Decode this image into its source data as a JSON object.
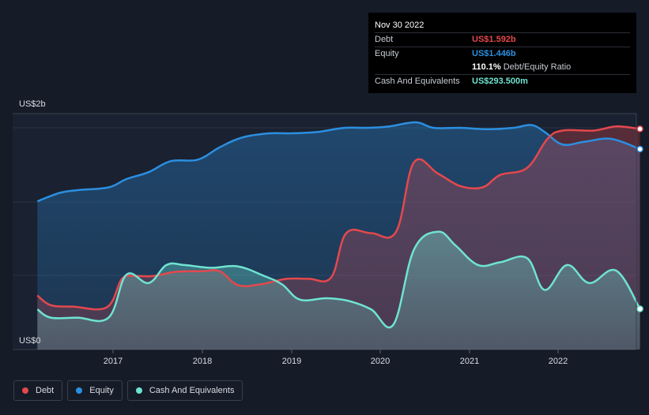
{
  "tooltip": {
    "date": "Nov 30 2022",
    "debt_label": "Debt",
    "debt_value": "US$1.592b",
    "equity_label": "Equity",
    "equity_value": "US$1.446b",
    "ratio_value": "110.1%",
    "ratio_label": "Debt/Equity Ratio",
    "cash_label": "Cash And Equivalents",
    "cash_value": "US$293.500m"
  },
  "legend": {
    "debt": "Debt",
    "equity": "Equity",
    "cash": "Cash And Equivalents"
  },
  "colors": {
    "debt": "#e5484d",
    "equity": "#2b8fe0",
    "cash": "#6fe3d1",
    "background": "#151b27"
  },
  "chart_data": {
    "type": "area",
    "ylabel_top": "US$2b",
    "ylabel_bottom": "US$0",
    "ylim": [
      0,
      1.6
    ],
    "x_ticks": [
      "2017",
      "2018",
      "2019",
      "2020",
      "2021",
      "2022"
    ],
    "series": [
      {
        "name": "Debt",
        "color": "#e5484d",
        "points": [
          [
            2016.15,
            0.39
          ],
          [
            2016.3,
            0.32
          ],
          [
            2016.55,
            0.31
          ],
          [
            2016.93,
            0.305
          ],
          [
            2017.1,
            0.51
          ],
          [
            2017.25,
            0.53
          ],
          [
            2017.45,
            0.53
          ],
          [
            2017.7,
            0.56
          ],
          [
            2018.0,
            0.565
          ],
          [
            2018.2,
            0.565
          ],
          [
            2018.4,
            0.465
          ],
          [
            2018.65,
            0.47
          ],
          [
            2018.95,
            0.51
          ],
          [
            2019.2,
            0.51
          ],
          [
            2019.45,
            0.52
          ],
          [
            2019.62,
            0.84
          ],
          [
            2019.9,
            0.84
          ],
          [
            2020.18,
            0.85
          ],
          [
            2020.38,
            1.35
          ],
          [
            2020.65,
            1.27
          ],
          [
            2020.9,
            1.18
          ],
          [
            2021.15,
            1.17
          ],
          [
            2021.35,
            1.26
          ],
          [
            2021.65,
            1.31
          ],
          [
            2021.88,
            1.52
          ],
          [
            2022.05,
            1.58
          ],
          [
            2022.4,
            1.58
          ],
          [
            2022.65,
            1.61
          ],
          [
            2022.92,
            1.592
          ]
        ]
      },
      {
        "name": "Equity",
        "color": "#2b8fe0",
        "points": [
          [
            2016.15,
            1.07
          ],
          [
            2016.4,
            1.13
          ],
          [
            2016.6,
            1.15
          ],
          [
            2016.95,
            1.17
          ],
          [
            2017.15,
            1.23
          ],
          [
            2017.4,
            1.28
          ],
          [
            2017.65,
            1.36
          ],
          [
            2017.95,
            1.37
          ],
          [
            2018.2,
            1.46
          ],
          [
            2018.45,
            1.53
          ],
          [
            2018.75,
            1.56
          ],
          [
            2019.0,
            1.56
          ],
          [
            2019.3,
            1.57
          ],
          [
            2019.6,
            1.6
          ],
          [
            2019.85,
            1.6
          ],
          [
            2020.1,
            1.61
          ],
          [
            2020.4,
            1.64
          ],
          [
            2020.6,
            1.6
          ],
          [
            2020.9,
            1.6
          ],
          [
            2021.2,
            1.59
          ],
          [
            2021.5,
            1.6
          ],
          [
            2021.7,
            1.62
          ],
          [
            2021.85,
            1.57
          ],
          [
            2022.05,
            1.48
          ],
          [
            2022.3,
            1.5
          ],
          [
            2022.6,
            1.52
          ],
          [
            2022.92,
            1.446
          ]
        ]
      },
      {
        "name": "Cash And Equivalents",
        "color": "#6fe3d1",
        "points": [
          [
            2016.15,
            0.29
          ],
          [
            2016.3,
            0.23
          ],
          [
            2016.6,
            0.23
          ],
          [
            2016.95,
            0.23
          ],
          [
            2017.15,
            0.54
          ],
          [
            2017.4,
            0.48
          ],
          [
            2017.6,
            0.61
          ],
          [
            2017.8,
            0.61
          ],
          [
            2018.1,
            0.59
          ],
          [
            2018.4,
            0.6
          ],
          [
            2018.7,
            0.53
          ],
          [
            2018.9,
            0.47
          ],
          [
            2019.1,
            0.36
          ],
          [
            2019.4,
            0.37
          ],
          [
            2019.65,
            0.35
          ],
          [
            2019.9,
            0.29
          ],
          [
            2020.15,
            0.18
          ],
          [
            2020.38,
            0.72
          ],
          [
            2020.65,
            0.85
          ],
          [
            2020.85,
            0.75
          ],
          [
            2021.1,
            0.61
          ],
          [
            2021.35,
            0.63
          ],
          [
            2021.65,
            0.66
          ],
          [
            2021.85,
            0.43
          ],
          [
            2022.1,
            0.61
          ],
          [
            2022.35,
            0.48
          ],
          [
            2022.65,
            0.57
          ],
          [
            2022.92,
            0.2935
          ]
        ]
      }
    ]
  }
}
